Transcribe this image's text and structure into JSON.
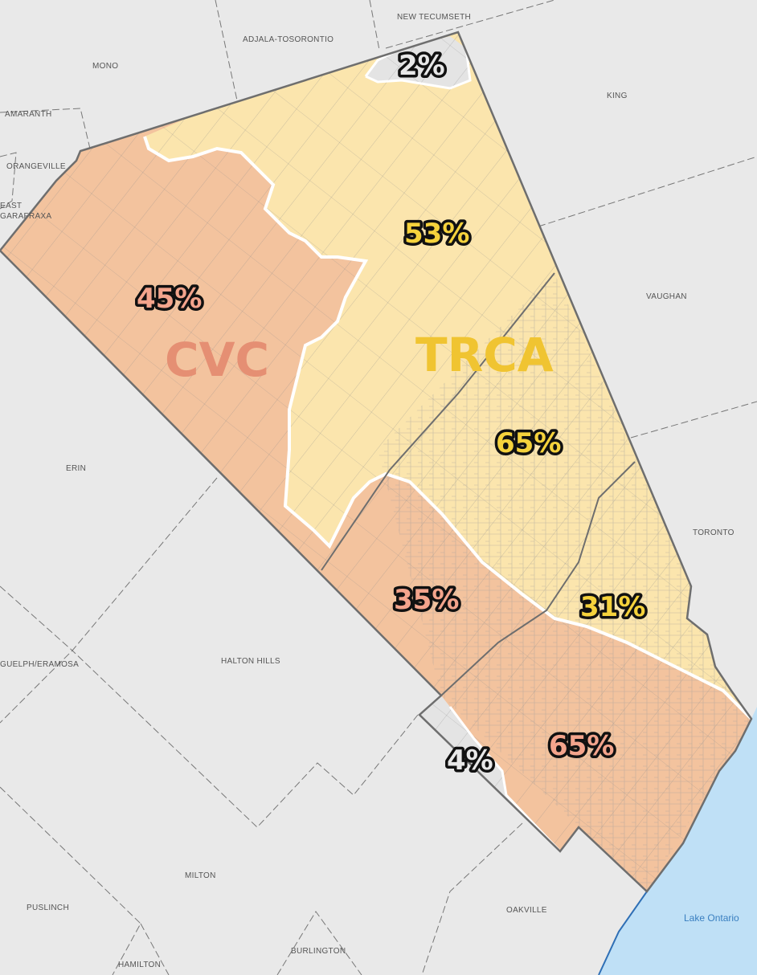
{
  "colors": {
    "background": "#e9e9e9",
    "lake": "#bfe0f6",
    "cvc_fill": "#f3c39e",
    "trca_fill": "#fbe5ad",
    "other_fill": "#e4e4e4",
    "cvc_label": "#e58f73",
    "trca_label": "#f0c431",
    "cvc_pct": "#f3a48c",
    "trca_pct": "#f5d23c",
    "other_pct": "#e8e8e8"
  },
  "regions": {
    "cvc": "CVC",
    "trca": "TRCA"
  },
  "percentages": [
    {
      "area": "Caledon CVC",
      "value": "45%"
    },
    {
      "area": "Caledon TRCA",
      "value": "53%"
    },
    {
      "area": "Caledon other",
      "value": "2%"
    },
    {
      "area": "Brampton TRCA",
      "value": "65%"
    },
    {
      "area": "Brampton CVC",
      "value": "35%"
    },
    {
      "area": "Mississauga TRCA",
      "value": "31%"
    },
    {
      "area": "Mississauga CVC",
      "value": "65%"
    },
    {
      "area": "Mississauga other",
      "value": "4%"
    }
  ],
  "places": [
    "NEW TECUMSETH",
    "ADJALA-TOSORONTIO",
    "MONO",
    "KING",
    "AMARANTH",
    "ORANGEVILLE",
    "EAST",
    "GARAFRAXA",
    "VAUGHAN",
    "ERIN",
    "TORONTO",
    "GUELPH/ERAMOSA",
    "HALTON HILLS",
    "MILTON",
    "PUSLINCH",
    "OAKVILLE",
    "BURLINGTON",
    "HAMILTON"
  ],
  "water": "Lake Ontario"
}
